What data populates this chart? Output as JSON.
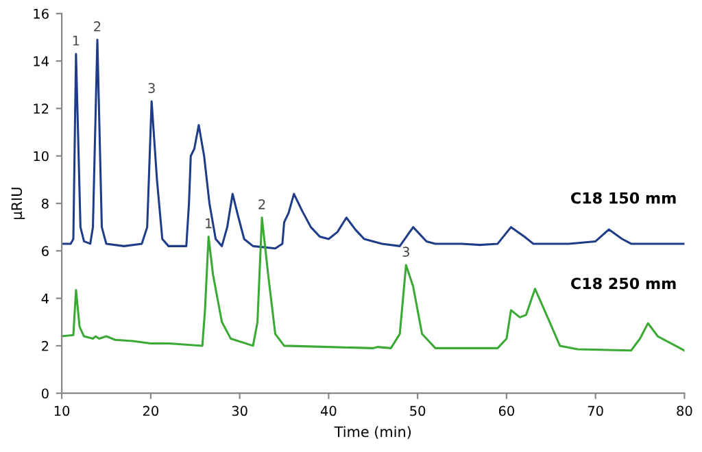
{
  "chart_data": {
    "type": "line",
    "xlabel": "Time (min)",
    "ylabel": "µRIU",
    "xlim": [
      10,
      80
    ],
    "xticks": [
      10,
      20,
      30,
      40,
      50,
      60,
      70,
      80
    ],
    "ylim": [
      0,
      16
    ],
    "yticks": [
      0,
      2,
      4,
      6,
      8,
      10,
      12,
      14,
      16
    ],
    "grid": false,
    "legend": false,
    "marker": "none",
    "line_style": "solid",
    "series": [
      {
        "name": "C18 150 mm",
        "color": "#1f3c88",
        "x": [
          10,
          11,
          11.3,
          11.6,
          12.1,
          12.5,
          13.2,
          13.5,
          14.0,
          14.5,
          15,
          17,
          19,
          19.6,
          20.1,
          20.7,
          21.3,
          22,
          24,
          24.3,
          24.5,
          24.9,
          25.4,
          26,
          26.6,
          27.3,
          28,
          28.6,
          29.2,
          29.8,
          30.5,
          31.5,
          34,
          34.8,
          35,
          35.5,
          36.1,
          37,
          38,
          39,
          40,
          41,
          42,
          43,
          44,
          46,
          48,
          49.5,
          51,
          52,
          55,
          57,
          59,
          60.5,
          62,
          63,
          67,
          70,
          71.5,
          73,
          74,
          78,
          80
        ],
        "values": [
          6.3,
          6.3,
          6.5,
          14.3,
          7,
          6.4,
          6.3,
          7,
          14.9,
          7,
          6.3,
          6.2,
          6.3,
          7,
          12.3,
          9,
          6.5,
          6.2,
          6.2,
          8,
          10,
          10.3,
          11.3,
          10,
          8,
          6.5,
          6.2,
          7,
          8.4,
          7.5,
          6.5,
          6.2,
          6.1,
          6.3,
          7.2,
          7.6,
          8.4,
          7.7,
          7.0,
          6.6,
          6.5,
          6.8,
          7.4,
          6.9,
          6.5,
          6.3,
          6.2,
          7.0,
          6.4,
          6.3,
          6.3,
          6.25,
          6.3,
          7.0,
          6.6,
          6.3,
          6.3,
          6.4,
          6.9,
          6.5,
          6.3,
          6.3,
          6.3
        ]
      },
      {
        "name": "C18 250 mm",
        "color": "#3aaa35",
        "x": [
          10,
          11.3,
          11.6,
          12,
          12.5,
          13.5,
          13.8,
          14.2,
          15,
          16,
          18,
          20,
          22,
          25.8,
          26.1,
          26.5,
          27,
          28,
          29,
          31.5,
          32,
          32.5,
          33.2,
          34,
          35,
          40,
          45,
          45.5,
          47,
          48,
          48.7,
          49.5,
          50.5,
          52,
          59,
          60,
          60.5,
          61.5,
          62.2,
          63.2,
          64.5,
          66,
          68,
          74,
          75,
          75.9,
          77,
          80
        ],
        "values": [
          2.4,
          2.45,
          4.35,
          2.8,
          2.4,
          2.3,
          2.4,
          2.3,
          2.4,
          2.25,
          2.2,
          2.1,
          2.1,
          2.0,
          3.5,
          6.6,
          5,
          3,
          2.3,
          2.0,
          3,
          7.4,
          5,
          2.5,
          2.0,
          1.95,
          1.9,
          1.95,
          1.9,
          2.5,
          5.4,
          4.5,
          2.5,
          1.9,
          1.9,
          2.3,
          3.5,
          3.2,
          3.3,
          4.4,
          3.3,
          2,
          1.85,
          1.8,
          2.3,
          2.95,
          2.4,
          1.8
        ]
      }
    ],
    "annotations": [
      {
        "text": "1",
        "x": 11.6,
        "y": 14.3
      },
      {
        "text": "2",
        "x": 14.0,
        "y": 14.9
      },
      {
        "text": "3",
        "x": 20.1,
        "y": 12.3
      },
      {
        "text": "1",
        "x": 26.5,
        "y": 6.6
      },
      {
        "text": "2",
        "x": 32.5,
        "y": 7.4
      },
      {
        "text": "3",
        "x": 48.7,
        "y": 5.4
      }
    ]
  }
}
